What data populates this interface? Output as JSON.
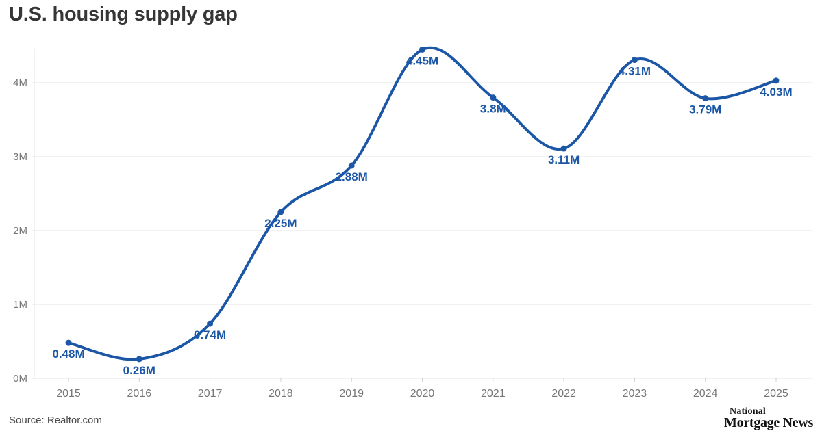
{
  "header": {
    "title": "U.S. housing supply gap"
  },
  "footer": {
    "source": "Source: Realtor.com",
    "logo_line1": "National",
    "logo_line2": "Mortgage News"
  },
  "colors": {
    "line": "#1b57a6",
    "point_label": "#1b57a6",
    "grid": "#e6e6e6",
    "tick": "#d0d0d0",
    "axis_text": "#767676",
    "title_text": "#363636",
    "source_text": "#4a4a4a",
    "logo_text": "#121212"
  },
  "chart_data": {
    "type": "line",
    "title": "U.S. housing supply gap",
    "categories": [
      "2015",
      "2016",
      "2017",
      "2018",
      "2019",
      "2020",
      "2021",
      "2022",
      "2023",
      "2024",
      "2025"
    ],
    "values": [
      0.48,
      0.26,
      0.74,
      2.25,
      2.88,
      4.45,
      3.8,
      3.11,
      4.31,
      3.79,
      4.03
    ],
    "point_labels": [
      "0.48M",
      "0.26M",
      "0.74M",
      "2.25M",
      "2.88M",
      "4.45M",
      "3.8M",
      "3.11M",
      "4.31M",
      "3.79M",
      "4.03M"
    ],
    "unit": "M",
    "xlabel": "",
    "ylabel": "",
    "y_tick_values": [
      0,
      1,
      2,
      3,
      4
    ],
    "y_tick_labels": [
      "0M",
      "1M",
      "2M",
      "3M",
      "4M"
    ],
    "ylim": [
      0,
      4.6
    ],
    "grid": true,
    "legend_position": "none",
    "curve": "smooth",
    "markers": true,
    "source": "Realtor.com"
  }
}
